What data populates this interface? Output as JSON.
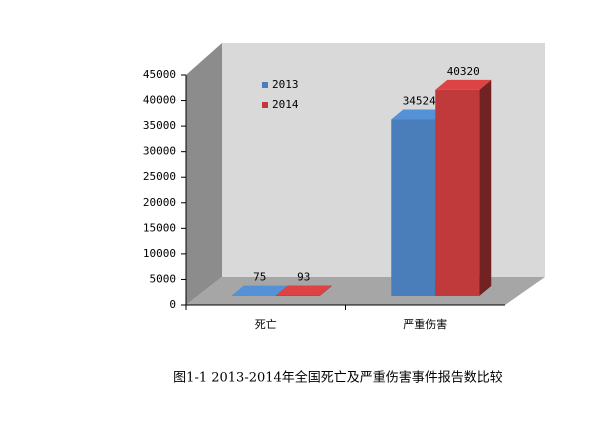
{
  "chart_data": {
    "type": "bar3d",
    "title": "图1-1 2013-2014年全国死亡及严重伤害事件报告数比较",
    "categories": [
      "死亡",
      "严重伤害"
    ],
    "series": [
      {
        "name": "2013",
        "color": "#4a7ebb",
        "values": [
          75,
          34524
        ]
      },
      {
        "name": "2014",
        "color": "#c0393b",
        "values": [
          93,
          40320
        ]
      }
    ],
    "ylim": [
      0,
      45000
    ],
    "yticks": [
      0,
      5000,
      10000,
      15000,
      20000,
      25000,
      30000,
      35000,
      40000,
      45000
    ],
    "grid": false,
    "legend": "top-left"
  }
}
